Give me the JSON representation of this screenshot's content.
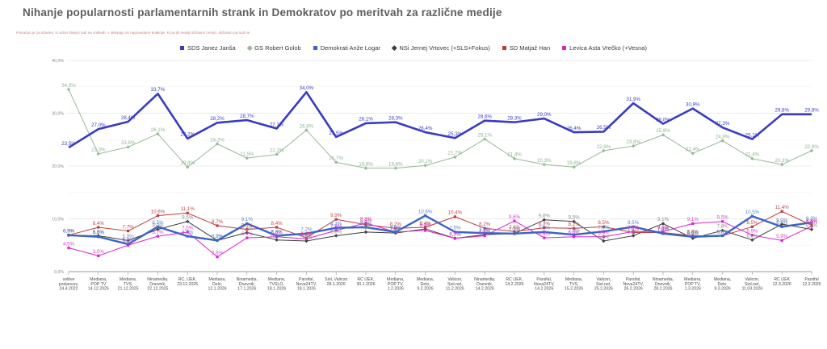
{
  "title": "Nihanje popularnosti parlamentarnih strank in Demokratov po meritvah za različne medije",
  "subtitle": "Preračun je za stranke, ki vidno štejejo tudi na volitvah, v oklepaju so napovedane koalicije, ki pa jih mediji občasno merijo, občasno pa tudi ne",
  "colors": {
    "sds": "#3a3ac6",
    "gs": "#97b897",
    "demokrati": "#3a64c8",
    "nsi": "#3d3d3d",
    "sd": "#bf3b3b",
    "levica": "#dd22cc"
  },
  "chart_data": {
    "type": "line",
    "ylim": [
      0,
      40
    ],
    "yticks": [
      "0,0%",
      "10,0%",
      "20,0%",
      "30,0%",
      "40,0%"
    ],
    "grid": "on",
    "legend_position": "top-center",
    "categories": [
      [
        "volitve",
        "poslancev,",
        "24.4.2022"
      ],
      [
        "Mediana,",
        "POP TV",
        "14.12.2025"
      ],
      [
        "Mediana,",
        "TVS,",
        "21.12.2025"
      ],
      [
        "Ninamedia,",
        "Dnevnik,",
        "22.12.2025"
      ],
      [
        "RC, IJEK,",
        "23.12.2025"
      ],
      [
        "Mediana,",
        "Delo,",
        "12.1.2026"
      ],
      [
        "Ninamedia,",
        "Dnevnik,",
        "17.1.2026"
      ],
      [
        "Mediana,",
        "TVSLO,",
        "18.1.2026"
      ],
      [
        "Parsifal,",
        "Nova24TV,",
        "18.1.2026"
      ],
      [
        "Siol, Valicon",
        "28.1.2026"
      ],
      [
        "RC IJEK,",
        "30.1.2026"
      ],
      [
        "Mediana,",
        "POP TV,",
        "1.2.2026"
      ],
      [
        "Mediana,",
        "Delo,",
        "9.2.2026"
      ],
      [
        "Valicon,",
        "Siol.net,",
        "11.2.2026"
      ],
      [
        "Ninamedia,",
        "Dnevnik,",
        "14.2.2026"
      ],
      [
        "RC IJEK,",
        "14.2.2026"
      ],
      [
        "Parsifal,",
        "Nova24TV,",
        "14.2.2026"
      ],
      [
        "Mediana,",
        "TVS,",
        "15.2.2026"
      ],
      [
        "Valicon,",
        "Siol.net,",
        "25.2.2026"
      ],
      [
        "Parsifal,",
        "Nova24TV,",
        "26.2.2026"
      ],
      [
        "Ninamedia,",
        "Dnevnik,",
        "28.2.2026"
      ],
      [
        "Mediana,",
        "POP TV,",
        "1.3.2026"
      ],
      [
        "Mediana,",
        "Delo,",
        "9.3.2026"
      ],
      [
        "Valicon,",
        "Siol.net,",
        "11.03.2026"
      ],
      [
        "RC IJEK",
        "12.3.2026"
      ],
      [
        "Parsifal",
        "12.3.2026"
      ]
    ],
    "series": [
      {
        "name": "SDS Janez Janša",
        "key": "sds",
        "color": "#3a3ac6",
        "label_color": "#4040c8",
        "width": 2.6,
        "marker": "none",
        "values": [
          23.5,
          27.0,
          28.4,
          33.7,
          25.2,
          28.2,
          28.7,
          27.1,
          34.0,
          25.5,
          28.1,
          28.3,
          26.4,
          25.3,
          28.6,
          28.3,
          29.0,
          26.4,
          26.5,
          31.9,
          28.0,
          30.9,
          27.3,
          25.1,
          29.8,
          29.8
        ]
      },
      {
        "name": "GS Robert Golob",
        "key": "gs",
        "color": "#97b897",
        "label_color": "#8fb48f",
        "width": 1,
        "marker": "diamond",
        "values": [
          34.5,
          22.3,
          23.6,
          26.1,
          19.8,
          24.2,
          21.5,
          22.2,
          26.8,
          20.7,
          19.6,
          19.6,
          20.1,
          21.7,
          25.1,
          21.4,
          20.3,
          19.8,
          22.9,
          23.8,
          25.9,
          22.4,
          24.8,
          21.4,
          20.3,
          22.9
        ]
      },
      {
        "name": "Demokrati Anže Logar",
        "key": "demokrati",
        "color": "#3a64c8",
        "label_color": "#5b86cf",
        "width": 2.4,
        "marker": "square",
        "values": [
          6.9,
          6.6,
          5.2,
          8.5,
          6.7,
          5.9,
          9.1,
          6.8,
          7.2,
          8.3,
          8.4,
          7.5,
          10.6,
          7.5,
          7.3,
          7.2,
          7.5,
          7.0,
          7.6,
          8.5,
          7.2,
          6.6,
          6.8,
          10.5,
          8.5,
          9.3
        ]
      },
      {
        "name": "NSi Jernej Vrtovec (+SLS+Fokus)",
        "key": "nsi",
        "color": "#3d3d3d",
        "label_color": "#8c8c8c",
        "width": 1,
        "marker": "diamond",
        "values": [
          6.9,
          6.8,
          5.9,
          8.0,
          9.5,
          5.9,
          7.4,
          6.0,
          5.8,
          6.8,
          7.5,
          7.3,
          8.1,
          6.3,
          7.0,
          7.2,
          9.8,
          9.5,
          5.8,
          6.8,
          9.1,
          6.3,
          7.8,
          6.0,
          9.0,
          8.0
        ]
      },
      {
        "name": "SD Matjaž Han",
        "key": "sd",
        "color": "#bf3b3b",
        "label_color": "#c14a4a",
        "width": 1,
        "marker": "square",
        "values": [
          6.9,
          8.4,
          7.7,
          10.6,
          11.1,
          8.7,
          8.0,
          8.4,
          6.4,
          9.9,
          8.9,
          8.2,
          8.4,
          10.4,
          8.2,
          7.6,
          8.3,
          8.2,
          8.5,
          7.4,
          7.4,
          6.8,
          6.8,
          8.5,
          11.4,
          8.8
        ]
      },
      {
        "name": "Levica Asta Vrečko (+Vesna)",
        "key": "levica",
        "color": "#dd22cc",
        "label_color": "#e040d0",
        "width": 1,
        "marker": "square",
        "values": [
          4.5,
          3.0,
          5.0,
          6.7,
          7.5,
          2.8,
          6.4,
          6.6,
          6.2,
          7.8,
          9.2,
          7.5,
          7.8,
          6.3,
          6.8,
          9.6,
          6.4,
          6.6,
          6.6,
          7.6,
          7.6,
          9.1,
          9.5,
          6.9,
          5.9,
          8.6
        ]
      }
    ]
  }
}
